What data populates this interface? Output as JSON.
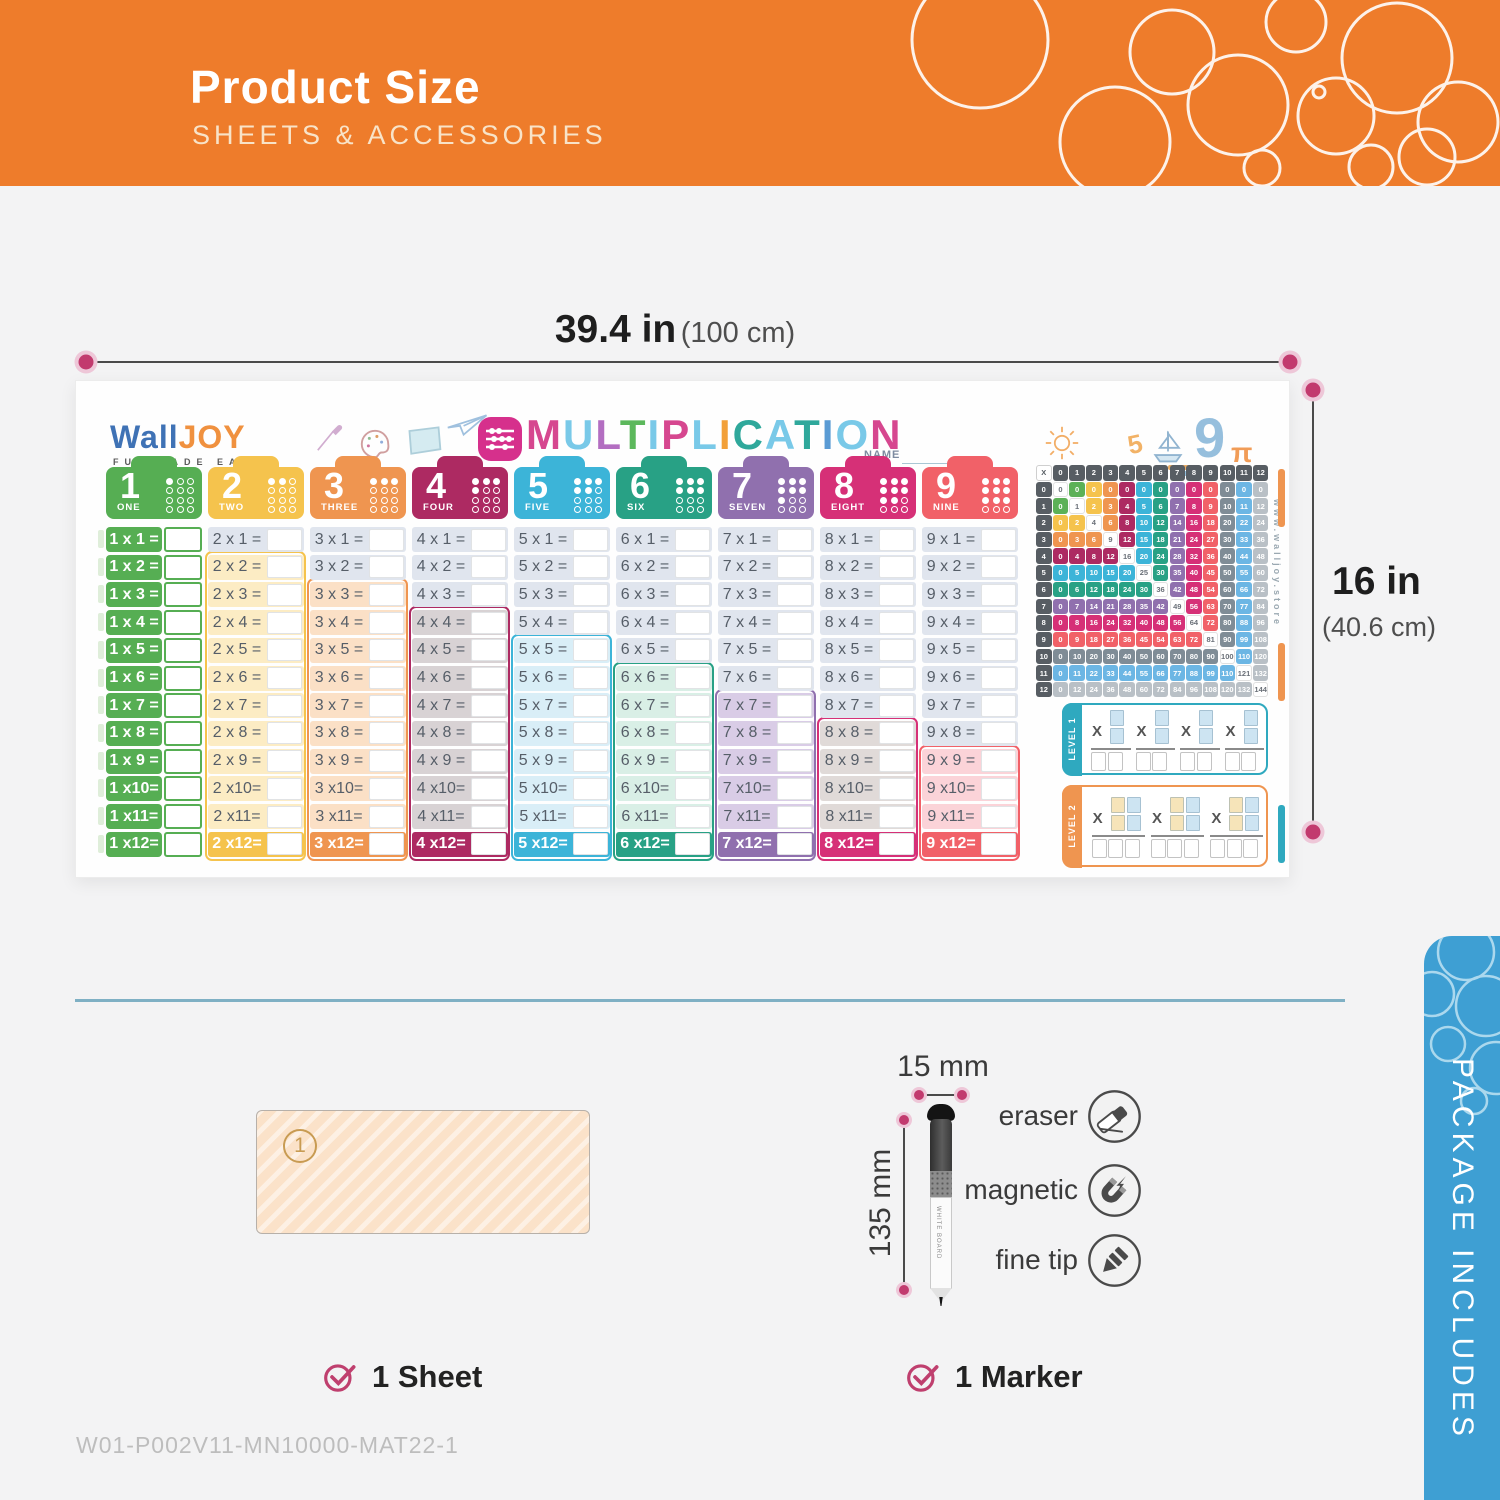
{
  "header": {
    "title": "Product Size",
    "subtitle": "SHEETS & ACCESSORIES",
    "bg_color": "#ee7c2b"
  },
  "dimensions": {
    "poster_width": "39.4 in",
    "poster_width_metric": "(100 cm)",
    "poster_height": "16 in",
    "poster_height_metric": "(40.6 cm)",
    "marker_diameter": "15 mm",
    "marker_length": "135 mm",
    "accent_color": "#c23a6e"
  },
  "poster": {
    "brand_wall": "Wall",
    "brand_joy": "JOY",
    "tagline": "FUN MADE EASY",
    "title_letters": [
      {
        "ch": "M",
        "color": "#d6478f"
      },
      {
        "ch": "U",
        "color": "#79c9e8"
      },
      {
        "ch": "L",
        "color": "#b36ec1"
      },
      {
        "ch": "T",
        "color": "#5cb85c"
      },
      {
        "ch": "I",
        "color": "#79c9e8"
      },
      {
        "ch": "P",
        "color": "#d6478f"
      },
      {
        "ch": "L",
        "color": "#79c9e8"
      },
      {
        "ch": "I",
        "color": "#f2a039"
      },
      {
        "ch": "C",
        "color": "#2fa89b"
      },
      {
        "ch": "A",
        "color": "#79c9e8"
      },
      {
        "ch": "T",
        "color": "#2fa89b"
      },
      {
        "ch": "I",
        "color": "#5a9bd4"
      },
      {
        "ch": "O",
        "color": "#79c9e8"
      },
      {
        "ch": "N",
        "color": "#d6478f"
      }
    ],
    "name_label": "NAME",
    "doodles": {
      "five": "5",
      "nine": "9",
      "pi": "π"
    },
    "website": "www.walljoy.store",
    "row_default_bg": "#e0e5ee",
    "columns": [
      {
        "number": "1",
        "word": "ONE",
        "color": "#56ae53",
        "light": "#dfeeda",
        "rows": [
          "1 x 1 =",
          "1 x 2 =",
          "1 x 3 =",
          "1 x 4 =",
          "1 x 5 =",
          "1 x 6 =",
          "1 x 7 =",
          "1 x 8 =",
          "1 x 9 =",
          "1 x10=",
          "1 x11=",
          "1 x12="
        ]
      },
      {
        "number": "2",
        "word": "TWO",
        "color": "#f5c34d",
        "light": "#fcecc4",
        "rows": [
          "2 x 1 =",
          "2 x 2 =",
          "2 x 3 =",
          "2 x 4 =",
          "2 x 5 =",
          "2 x 6 =",
          "2 x 7 =",
          "2 x 8 =",
          "2 x 9 =",
          "2 x10=",
          "2 x11=",
          "2 x12="
        ]
      },
      {
        "number": "3",
        "word": "THREE",
        "color": "#ef9550",
        "light": "#fbe0c6",
        "rows": [
          "3 x 1 =",
          "3 x 2 =",
          "3 x 3 =",
          "3 x 4 =",
          "3 x 5 =",
          "3 x 6 =",
          "3 x 7 =",
          "3 x 8 =",
          "3 x 9 =",
          "3 x10=",
          "3 x11=",
          "3 x12="
        ]
      },
      {
        "number": "4",
        "word": "FOUR",
        "color": "#ad2a62",
        "light": "#d8d2d4",
        "rows": [
          "4 x 1 =",
          "4 x 2 =",
          "4 x 3 =",
          "4 x 4 =",
          "4 x 5 =",
          "4 x 6 =",
          "4 x 7 =",
          "4 x 8 =",
          "4 x 9 =",
          "4 x10=",
          "4 x11=",
          "4 x12="
        ]
      },
      {
        "number": "5",
        "word": "FIVE",
        "color": "#3cb4d8",
        "light": "#d9eef7",
        "rows": [
          "5 x 1 =",
          "5 x 2 =",
          "5 x 3 =",
          "5 x 4 =",
          "5 x 5 =",
          "5 x 6 =",
          "5 x 7 =",
          "5 x 8 =",
          "5 x 9 =",
          "5 x10=",
          "5 x11=",
          "5 x12="
        ]
      },
      {
        "number": "6",
        "word": "SIX",
        "color": "#28a185",
        "light": "#d9efe6",
        "rows": [
          "6 x 1 =",
          "6 x 2 =",
          "6 x 3 =",
          "6 x 4 =",
          "6 x 5 =",
          "6 x 6 =",
          "6 x 7 =",
          "6 x 8 =",
          "6 x 9 =",
          "6 x10=",
          "6 x11=",
          "6 x12="
        ]
      },
      {
        "number": "7",
        "word": "SEVEN",
        "color": "#9070ae",
        "light": "#d9cce6",
        "rows": [
          "7 x 1 =",
          "7 x 2 =",
          "7 x 3 =",
          "7 x 4 =",
          "7 x 5 =",
          "7 x 6 =",
          "7 x 7 =",
          "7 x 8 =",
          "7 x 9 =",
          "7 x10=",
          "7 x11=",
          "7 x12="
        ]
      },
      {
        "number": "8",
        "word": "EIGHT",
        "color": "#d63077",
        "light": "#e0dad8",
        "rows": [
          "8 x 1 =",
          "8 x 2 =",
          "8 x 3 =",
          "8 x 4 =",
          "8 x 5 =",
          "8 x 6 =",
          "8 x 7 =",
          "8 x 8 =",
          "8 x 9 =",
          "8 x10=",
          "8 x11=",
          "8 x12="
        ]
      },
      {
        "number": "9",
        "word": "NINE",
        "color": "#f16168",
        "light": "#fbd3d8",
        "rows": [
          "9 x 1 =",
          "9 x 2 =",
          "9 x 3 =",
          "9 x 4 =",
          "9 x 5 =",
          "9 x 6 =",
          "9 x 7 =",
          "9 x 8 =",
          "9 x 9 =",
          "9 x10=",
          "9 x11=",
          "9 x12="
        ]
      }
    ],
    "grid": {
      "corner": "X",
      "axis": [
        "0",
        "1",
        "2",
        "3",
        "4",
        "5",
        "6",
        "7",
        "8",
        "9",
        "10",
        "11",
        "12"
      ],
      "band_colors": [
        "#5cb157",
        "#5cb157",
        "#f5c34d",
        "#ef9550",
        "#ad2a62",
        "#3cb4d8",
        "#28a185",
        "#9070ae",
        "#d63077",
        "#f16168",
        "#7f8c96",
        "#6cb6e4",
        "#b9c0c6"
      ],
      "rows": [
        [
          0,
          0,
          0,
          0,
          0,
          0,
          0,
          0,
          0,
          0,
          0,
          0,
          0
        ],
        [
          0,
          1,
          2,
          3,
          4,
          5,
          6,
          7,
          8,
          9,
          10,
          11,
          12
        ],
        [
          0,
          2,
          4,
          6,
          8,
          10,
          12,
          14,
          16,
          18,
          20,
          22,
          24
        ],
        [
          0,
          3,
          6,
          9,
          12,
          15,
          18,
          21,
          24,
          27,
          30,
          33,
          36
        ],
        [
          0,
          4,
          8,
          12,
          16,
          20,
          24,
          28,
          32,
          36,
          40,
          44,
          48
        ],
        [
          0,
          5,
          10,
          15,
          20,
          25,
          30,
          35,
          40,
          45,
          50,
          55,
          60
        ],
        [
          0,
          6,
          12,
          18,
          24,
          30,
          36,
          42,
          48,
          54,
          60,
          66,
          72
        ],
        [
          0,
          7,
          14,
          21,
          28,
          35,
          42,
          49,
          56,
          63,
          70,
          77,
          84
        ],
        [
          0,
          8,
          16,
          24,
          32,
          40,
          48,
          56,
          64,
          72,
          80,
          88,
          96
        ],
        [
          0,
          9,
          18,
          27,
          36,
          45,
          54,
          63,
          72,
          81,
          90,
          99,
          108
        ],
        [
          0,
          10,
          20,
          30,
          40,
          50,
          60,
          70,
          80,
          90,
          100,
          110,
          120
        ],
        [
          0,
          11,
          22,
          33,
          44,
          55,
          66,
          77,
          88,
          99,
          110,
          121,
          132
        ],
        [
          0,
          12,
          24,
          36,
          48,
          60,
          72,
          84,
          96,
          108,
          120,
          132,
          144
        ]
      ]
    },
    "levels": [
      {
        "label": "LEVEL 1",
        "color": "#2fa9bf",
        "symbol": "X",
        "problems": 4,
        "stacks": [
          "#cde4f2"
        ]
      },
      {
        "label": "LEVEL 2",
        "color": "#ef9550",
        "symbol": "X",
        "problems": 3,
        "stacks": [
          "#f6e4b9",
          "#cde4f2"
        ]
      }
    ]
  },
  "includes": {
    "panel_title": "PACKAGE INCLUDES",
    "panel_color": "#3e9fd3",
    "sheet_label": "1 Sheet",
    "marker_label": "1 Marker",
    "sheet_badge": "1",
    "marker_text": "WHITE BOARD",
    "features": [
      "eraser",
      "magnetic",
      "fine tip"
    ]
  },
  "footer_code": "W01-P002V11-MN10000-MAT22-1"
}
